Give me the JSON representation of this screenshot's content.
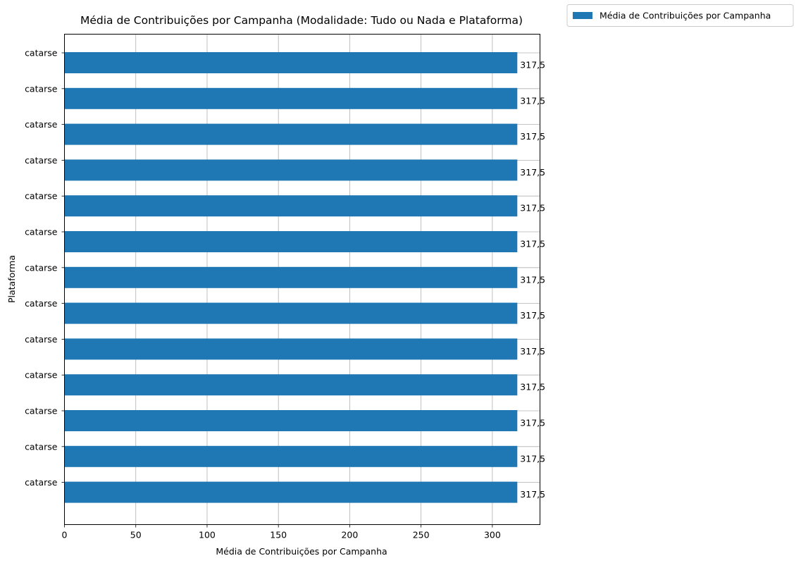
{
  "chart_data": {
    "type": "bar",
    "orientation": "horizontal",
    "title": "Média de Contribuições por Campanha (Modalidade: Tudo ou Nada e Plataforma)",
    "xlabel": "Média de Contribuições por Campanha",
    "ylabel": "Plataforma",
    "categories": [
      "catarse",
      "catarse",
      "catarse",
      "catarse",
      "catarse",
      "catarse",
      "catarse",
      "catarse",
      "catarse",
      "catarse",
      "catarse",
      "catarse",
      "catarse"
    ],
    "series": [
      {
        "name": "Média de Contribuições por Campanha",
        "values": [
          317.5,
          317.5,
          317.5,
          317.5,
          317.5,
          317.5,
          317.5,
          317.5,
          317.5,
          317.5,
          317.5,
          317.5,
          317.5
        ],
        "color": "#1f77b4"
      }
    ],
    "data_labels": [
      "317,5",
      "317,5",
      "317,5",
      "317,5",
      "317,5",
      "317,5",
      "317,5",
      "317,5",
      "317,5",
      "317,5",
      "317,5",
      "317,5",
      "317,5"
    ],
    "xticks": [
      0,
      50,
      100,
      150,
      200,
      250,
      300
    ],
    "xlim": [
      0,
      333.4
    ],
    "grid": true,
    "legend_position": "outside-top-right"
  }
}
